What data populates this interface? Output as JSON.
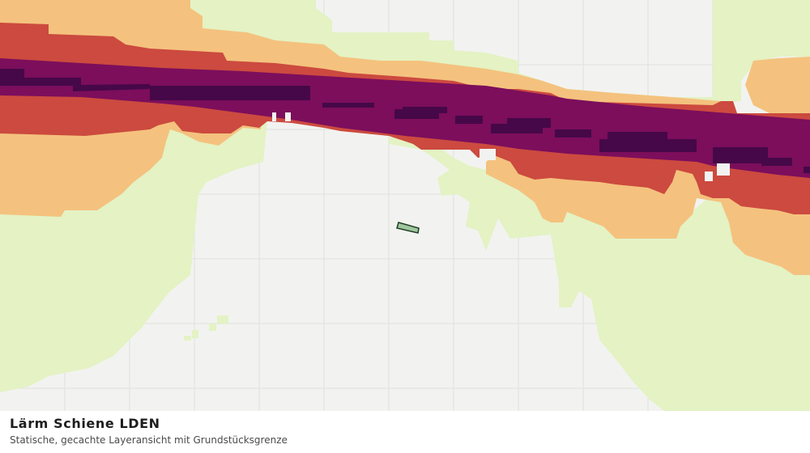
{
  "title": "Lärm Schiene LDEN",
  "subtitle": "Statische, gecachte Layeransicht mit Grundstücksgrenze",
  "colors": {
    "background": "#f2f3f0",
    "grid": "#e0e2dd",
    "noise_level_1": "#e4f2c4",
    "noise_level_2": "#f4c27e",
    "noise_level_3": "#cc4a3f",
    "noise_level_4": "#7c0e5c",
    "noise_level_5": "#460848",
    "parcel_fill": "#9fc79f",
    "parcel_outline": "#1f3b22"
  }
}
